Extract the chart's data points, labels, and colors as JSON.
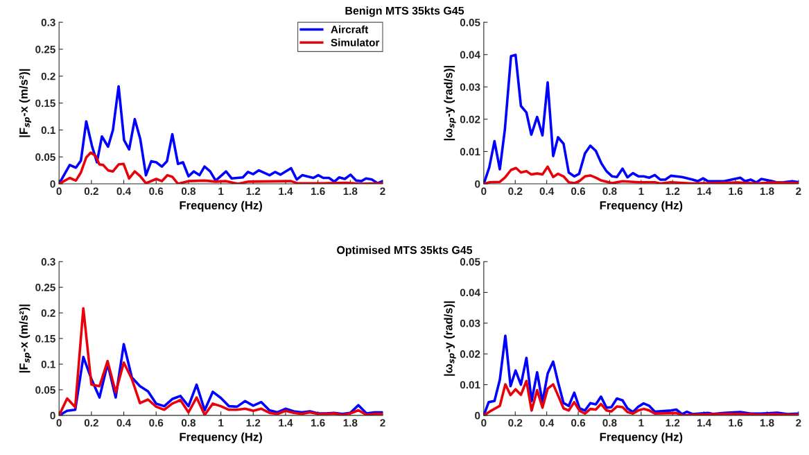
{
  "chart_data": [
    {
      "type": "line",
      "title": "Benign MTS 35kts G45",
      "xlabel": "Frequency (Hz)",
      "ylabel": "|F$_{sp}$-x (m/s²)|",
      "xlim": [
        0,
        2
      ],
      "xticks": [
        0,
        0.2,
        0.4,
        0.6,
        0.8,
        1,
        1.2,
        1.4,
        1.6,
        1.8,
        2
      ],
      "ylim": [
        0,
        0.3
      ],
      "yticks": [
        0,
        0.05,
        0.1,
        0.15,
        0.2,
        0.25,
        0.3
      ],
      "legend": "top right",
      "grid": false,
      "series": [
        {
          "name": "Aircraft",
          "color": "#0000ff",
          "x": [
            0,
            0.066,
            0.104,
            0.135,
            0.168,
            0.203,
            0.234,
            0.265,
            0.303,
            0.333,
            0.368,
            0.402,
            0.433,
            0.468,
            0.502,
            0.537,
            0.57,
            0.601,
            0.635,
            0.667,
            0.7,
            0.735,
            0.766,
            0.8,
            0.833,
            0.868,
            0.899,
            0.934,
            0.968,
            1.032,
            1.067,
            1.136,
            1.167,
            1.2,
            1.235,
            1.301,
            1.335,
            1.369,
            1.434,
            1.469,
            1.503,
            1.572,
            1.602,
            1.633,
            1.668,
            1.702,
            1.732,
            1.766,
            1.801,
            1.836,
            1.869,
            1.897,
            1.933,
            1.969,
            2
          ],
          "values": [
            0,
            0.035,
            0.03,
            0.043,
            0.116,
            0.071,
            0.04,
            0.088,
            0.069,
            0.1,
            0.181,
            0.081,
            0.064,
            0.12,
            0.083,
            0.016,
            0.042,
            0.04,
            0.032,
            0.042,
            0.092,
            0.037,
            0.04,
            0.014,
            0.023,
            0.016,
            0.032,
            0.023,
            0.006,
            0.023,
            0.01,
            0.012,
            0.022,
            0.018,
            0.025,
            0.016,
            0.022,
            0.017,
            0.029,
            0.008,
            0.016,
            0.011,
            0.016,
            0.011,
            0.011,
            0.004,
            0.012,
            0.009,
            0.017,
            0.006,
            0.005,
            0.01,
            0.008,
            0.001,
            0.005
          ]
        },
        {
          "name": "Simulator",
          "color": "#e8000b",
          "x": [
            0,
            0.066,
            0.104,
            0.135,
            0.168,
            0.196,
            0.226,
            0.249,
            0.272,
            0.303,
            0.333,
            0.368,
            0.399,
            0.433,
            0.468,
            0.502,
            0.537,
            0.601,
            0.635,
            0.67,
            0.7,
            0.735,
            0.8,
            0.899,
            0.968,
            1.032,
            1.106,
            1.167,
            1.434,
            1.472,
            1.625,
            1.778,
            1.855,
            2
          ],
          "values": [
            0,
            0.011,
            0.006,
            0.021,
            0.049,
            0.058,
            0.052,
            0.036,
            0.035,
            0.025,
            0.023,
            0.036,
            0.037,
            0.01,
            0.023,
            0.014,
            0.001,
            0.009,
            0.005,
            0.016,
            0.013,
            0,
            0.005,
            0.006,
            0.004,
            0.005,
            0,
            0.004,
            0.005,
            0.001,
            0.001,
            0.002,
            0,
            0.001
          ]
        }
      ]
    },
    {
      "type": "line",
      "xlabel": "Frequency (Hz)",
      "ylabel": "|ω$_{sp}$-y (rad/s)|",
      "xlim": [
        0,
        2
      ],
      "xticks": [
        0,
        0.2,
        0.4,
        0.6,
        0.8,
        1,
        1.2,
        1.4,
        1.6,
        1.8,
        2
      ],
      "ylim": [
        0,
        0.05
      ],
      "yticks": [
        0,
        0.01,
        0.02,
        0.03,
        0.04,
        0.05
      ],
      "grid": false,
      "series": [
        {
          "color": "#0000ff",
          "x": [
            0,
            0.035,
            0.068,
            0.102,
            0.134,
            0.173,
            0.202,
            0.236,
            0.271,
            0.302,
            0.339,
            0.373,
            0.406,
            0.441,
            0.472,
            0.507,
            0.54,
            0.575,
            0.606,
            0.643,
            0.677,
            0.712,
            0.748,
            0.78,
            0.816,
            0.846,
            0.882,
            0.913,
            0.948,
            0.984,
            1.016,
            1.052,
            1.087,
            1.121,
            1.154,
            1.189,
            1.26,
            1.328,
            1.359,
            1.394,
            1.425,
            1.528,
            1.63,
            1.661,
            1.696,
            1.732,
            1.764,
            1.835,
            1.866,
            1.906,
            1.961,
            2
          ],
          "values": [
            0,
            0.0051,
            0.0132,
            0.0045,
            0.0168,
            0.0395,
            0.0399,
            0.0241,
            0.0221,
            0.0152,
            0.0207,
            0.015,
            0.0314,
            0.0086,
            0.0144,
            0.0124,
            0.0035,
            0.0023,
            0.0031,
            0.0094,
            0.0118,
            0.0102,
            0.0063,
            0.0039,
            0.0023,
            0.0021,
            0.0047,
            0.002,
            0.0033,
            0.0023,
            0.0023,
            0.0019,
            0.0027,
            0.0013,
            0.0013,
            0.0025,
            0.0021,
            0.0013,
            0.0008,
            0.0017,
            0.0008,
            0.0008,
            0.0019,
            0.0008,
            0.0013,
            0.0004,
            0.0015,
            0.0008,
            0.0004,
            0.0005,
            0.0008,
            0.0005
          ]
        },
        {
          "color": "#e8000b",
          "x": [
            0,
            0.039,
            0.102,
            0.134,
            0.173,
            0.205,
            0.236,
            0.271,
            0.302,
            0.339,
            0.373,
            0.406,
            0.441,
            0.472,
            0.507,
            0.54,
            0.575,
            0.606,
            0.643,
            0.677,
            0.712,
            0.748,
            0.816,
            0.882,
            0.984,
            1.087,
            1.121,
            1.189,
            1.328,
            1.614,
            1.732,
            1.835,
            2
          ],
          "values": [
            0,
            0.0005,
            0.0006,
            0.0019,
            0.0043,
            0.0049,
            0.0035,
            0.0039,
            0.0029,
            0.0032,
            0.0029,
            0.0053,
            0.0021,
            0.0031,
            0.0023,
            0.0005,
            0.0002,
            0.0008,
            0.0023,
            0.0026,
            0.0019,
            0.001,
            0.0002,
            0.0008,
            0.0005,
            0.0005,
            0.0001,
            0.0005,
            0.0001,
            0.0004,
            0.0001,
            0.0004,
            0.0002
          ]
        }
      ]
    },
    {
      "type": "line",
      "title": "Optimised MTS 35kts G45",
      "xlabel": "Frequency (Hz)",
      "ylabel": "|F$_{sp}$-x (m/s²)|",
      "xlim": [
        0,
        2
      ],
      "xticks": [
        0,
        0.2,
        0.4,
        0.6,
        0.8,
        1,
        1.2,
        1.4,
        1.6,
        1.8,
        2
      ],
      "ylim": [
        0,
        0.3
      ],
      "yticks": [
        0,
        0.05,
        0.1,
        0.15,
        0.2,
        0.25,
        0.3
      ],
      "grid": false,
      "x": [
        0,
        0.05,
        0.1,
        0.15,
        0.2,
        0.25,
        0.3,
        0.35,
        0.4,
        0.45,
        0.5,
        0.55,
        0.6,
        0.65,
        0.7,
        0.75,
        0.8,
        0.85,
        0.9,
        0.95,
        1.0,
        1.05,
        1.1,
        1.15,
        1.2,
        1.25,
        1.3,
        1.35,
        1.4,
        1.45,
        1.5,
        1.55,
        1.6,
        1.65,
        1.7,
        1.75,
        1.8,
        1.85,
        1.9,
        1.95,
        2.0
      ],
      "series": [
        {
          "color": "#0000ff",
          "values": [
            0,
            0.009,
            0.011,
            0.114,
            0.071,
            0.035,
            0.101,
            0.035,
            0.139,
            0.074,
            0.057,
            0.047,
            0.023,
            0.018,
            0.032,
            0.038,
            0.018,
            0.06,
            0.01,
            0.046,
            0.034,
            0.018,
            0.017,
            0.028,
            0.019,
            0.026,
            0.01,
            0.006,
            0.013,
            0.008,
            0.006,
            0.008,
            0.004,
            0.004,
            0.005,
            0.003,
            0.005,
            0.02,
            0.004,
            0.006,
            0.006
          ]
        },
        {
          "color": "#e8000b",
          "values": [
            0,
            0.033,
            0.016,
            0.209,
            0.06,
            0.057,
            0.106,
            0.045,
            0.103,
            0.071,
            0.024,
            0.031,
            0.017,
            0.011,
            0.023,
            0.03,
            0.006,
            0.035,
            0.001,
            0.023,
            0.018,
            0.011,
            0.011,
            0.013,
            0.009,
            0.013,
            0.005,
            0.003,
            0.009,
            0.005,
            0.003,
            0.006,
            0.003,
            0.003,
            0.004,
            0.001,
            0.004,
            0.01,
            0.001,
            0.003,
            0.003
          ]
        }
      ]
    },
    {
      "type": "line",
      "xlabel": "Frequency (Hz)",
      "ylabel": "|ω$_{sp}$-y (rad/s)|",
      "xlim": [
        0,
        2
      ],
      "xticks": [
        0,
        0.2,
        0.4,
        0.6,
        0.8,
        1,
        1.2,
        1.4,
        1.6,
        1.8,
        2
      ],
      "ylim": [
        0,
        0.05
      ],
      "yticks": [
        0,
        0.01,
        0.02,
        0.03,
        0.04,
        0.05
      ],
      "grid": false,
      "series": [
        {
          "color": "#0000ff",
          "x": [
            0,
            0.031,
            0.068,
            0.102,
            0.137,
            0.17,
            0.202,
            0.236,
            0.271,
            0.304,
            0.339,
            0.373,
            0.406,
            0.441,
            0.472,
            0.507,
            0.54,
            0.575,
            0.609,
            0.643,
            0.677,
            0.712,
            0.745,
            0.78,
            0.811,
            0.846,
            0.882,
            0.913,
            0.948,
            0.981,
            1.016,
            1.052,
            1.087,
            1.189,
            1.224,
            1.26,
            1.291,
            1.328,
            1.425,
            1.457,
            1.528,
            1.63,
            1.696,
            1.764,
            1.866,
            1.929,
            2
          ],
          "values": [
            0,
            0.0043,
            0.0047,
            0.0116,
            0.0259,
            0.0095,
            0.0146,
            0.01,
            0.0187,
            0.0047,
            0.014,
            0.0043,
            0.0136,
            0.0175,
            0.0108,
            0.004,
            0.0031,
            0.0074,
            0.0023,
            0.0016,
            0.004,
            0.0036,
            0.0061,
            0.0025,
            0.0027,
            0.0055,
            0.0049,
            0.0023,
            0.0011,
            0.0028,
            0.0039,
            0.0031,
            0.0012,
            0.0016,
            0.0019,
            0.0004,
            0.0012,
            0.0004,
            0.0008,
            0.0005,
            0.0008,
            0.0011,
            0.0006,
            0.0006,
            0.0009,
            0.0004,
            0.0006
          ]
        },
        {
          "color": "#e8000b",
          "x": [
            0,
            0.039,
            0.102,
            0.137,
            0.17,
            0.202,
            0.236,
            0.271,
            0.304,
            0.339,
            0.373,
            0.406,
            0.441,
            0.472,
            0.507,
            0.54,
            0.575,
            0.609,
            0.643,
            0.677,
            0.712,
            0.745,
            0.78,
            0.811,
            0.846,
            0.882,
            0.913,
            0.948,
            0.981,
            1.016,
            1.052,
            1.087,
            1.224,
            1.26,
            1.328,
            1.528,
            1.63,
            1.772,
            1.85,
            1.929,
            2
          ],
          "values": [
            0,
            0.0013,
            0.0031,
            0.0101,
            0.0066,
            0.0085,
            0.0067,
            0.0112,
            0.0016,
            0.0082,
            0.0025,
            0.0087,
            0.0101,
            0.0065,
            0.0023,
            0.0016,
            0.0043,
            0.0015,
            0.0006,
            0.0021,
            0.0019,
            0.0037,
            0.0016,
            0.0013,
            0.0029,
            0.0027,
            0.0011,
            0.0006,
            0.0016,
            0.0021,
            0.0016,
            0.0006,
            0.0008,
            0,
            0.0002,
            0.0005,
            0.0005,
            0.0002,
            0.0004,
            0.0002,
            0.0002
          ]
        }
      ]
    }
  ]
}
